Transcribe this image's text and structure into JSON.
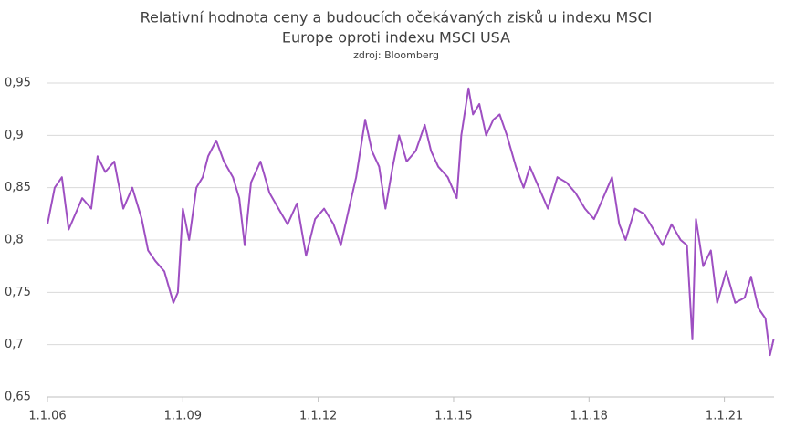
{
  "chart_data": {
    "type": "line",
    "title": [
      "Relativní hodnota ceny a budoucích očekávaných zisků u indexu MSCI",
      "Europe oproti indexu MSCI USA"
    ],
    "subtitle": "zdroj: Bloomberg",
    "xlim": [
      2006,
      2022.1
    ],
    "xticks": [
      {
        "value": 2006,
        "label": "1.1.06"
      },
      {
        "value": 2009,
        "label": "1.1.09"
      },
      {
        "value": 2012,
        "label": "1.1.12"
      },
      {
        "value": 2015,
        "label": "1.1.15"
      },
      {
        "value": 2018,
        "label": "1.1.18"
      },
      {
        "value": 2021,
        "label": "1.1.21"
      }
    ],
    "ylim": [
      0.65,
      0.95
    ],
    "yticks": [
      {
        "value": 0.65,
        "label": "0,65"
      },
      {
        "value": 0.7,
        "label": "0,7"
      },
      {
        "value": 0.75,
        "label": "0,75"
      },
      {
        "value": 0.8,
        "label": "0,8"
      },
      {
        "value": 0.85,
        "label": "0,85"
      },
      {
        "value": 0.9,
        "label": "0,9"
      },
      {
        "value": 0.95,
        "label": "0,95"
      }
    ],
    "grid": true,
    "series": [
      {
        "color": "#9e4fc2",
        "x": [
          2006.0,
          2006.16,
          2006.32,
          2006.47,
          2006.77,
          2006.97,
          2007.11,
          2007.28,
          2007.48,
          2007.68,
          2007.88,
          2008.09,
          2008.23,
          2008.39,
          2008.59,
          2008.79,
          2008.89,
          2009.0,
          2009.14,
          2009.3,
          2009.44,
          2009.56,
          2009.74,
          2009.91,
          2010.11,
          2010.25,
          2010.37,
          2010.51,
          2010.72,
          2010.92,
          2011.12,
          2011.32,
          2011.53,
          2011.73,
          2011.93,
          2012.13,
          2012.34,
          2012.5,
          2012.68,
          2012.84,
          2013.04,
          2013.19,
          2013.35,
          2013.49,
          2013.65,
          2013.79,
          2013.96,
          2014.16,
          2014.36,
          2014.5,
          2014.66,
          2014.87,
          2015.07,
          2015.17,
          2015.33,
          2015.43,
          2015.57,
          2015.72,
          2015.88,
          2016.02,
          2016.18,
          2016.38,
          2016.55,
          2016.69,
          2016.89,
          2017.09,
          2017.3,
          2017.5,
          2017.7,
          2017.91,
          2018.11,
          2018.31,
          2018.51,
          2018.67,
          2018.81,
          2019.02,
          2019.22,
          2019.43,
          2019.63,
          2019.83,
          2020.03,
          2020.17,
          2020.29,
          2020.37,
          2020.53,
          2020.7,
          2020.84,
          2021.04,
          2021.24,
          2021.45,
          2021.59,
          2021.75,
          2021.91,
          2022.01,
          2022.09
        ],
        "values": [
          0.815,
          0.85,
          0.86,
          0.81,
          0.84,
          0.83,
          0.88,
          0.865,
          0.875,
          0.83,
          0.85,
          0.82,
          0.79,
          0.78,
          0.77,
          0.74,
          0.75,
          0.83,
          0.8,
          0.85,
          0.86,
          0.88,
          0.895,
          0.875,
          0.86,
          0.84,
          0.795,
          0.855,
          0.875,
          0.845,
          0.83,
          0.815,
          0.835,
          0.785,
          0.82,
          0.83,
          0.815,
          0.795,
          0.83,
          0.86,
          0.915,
          0.885,
          0.87,
          0.83,
          0.87,
          0.9,
          0.875,
          0.885,
          0.91,
          0.885,
          0.87,
          0.86,
          0.84,
          0.9,
          0.945,
          0.92,
          0.93,
          0.9,
          0.915,
          0.92,
          0.9,
          0.87,
          0.85,
          0.87,
          0.85,
          0.83,
          0.86,
          0.855,
          0.845,
          0.83,
          0.82,
          0.84,
          0.86,
          0.815,
          0.8,
          0.83,
          0.825,
          0.81,
          0.795,
          0.815,
          0.8,
          0.795,
          0.705,
          0.82,
          0.775,
          0.79,
          0.74,
          0.77,
          0.74,
          0.745,
          0.765,
          0.735,
          0.725,
          0.69,
          0.705
        ]
      }
    ]
  }
}
